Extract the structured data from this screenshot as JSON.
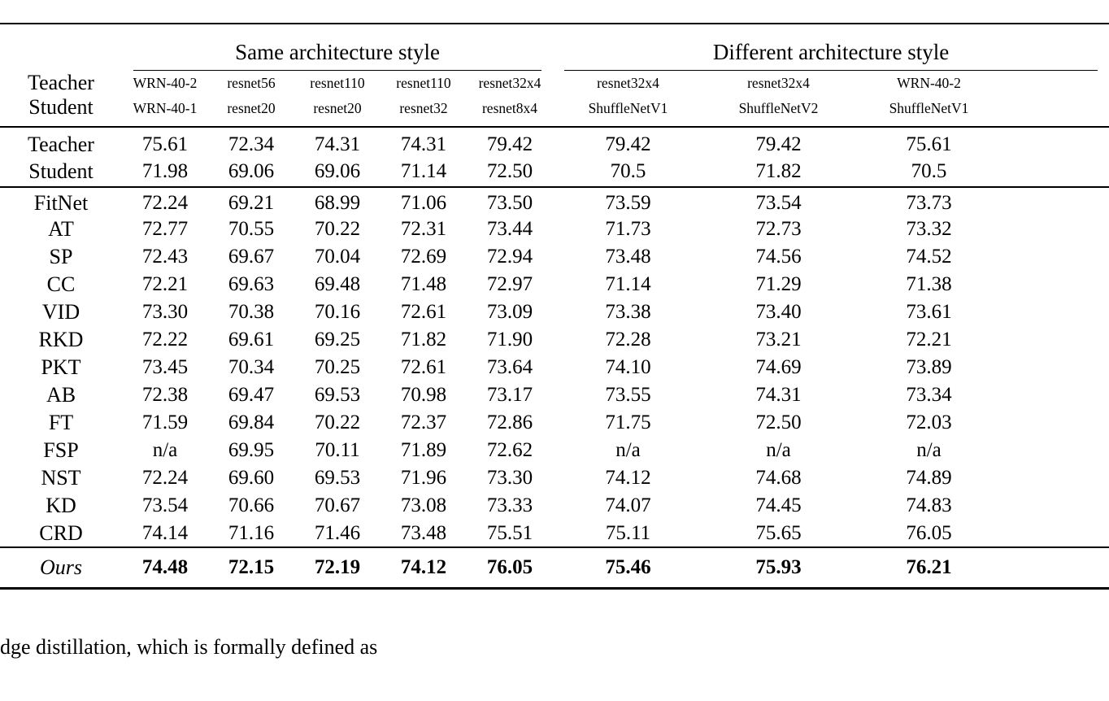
{
  "table": {
    "group_headers": [
      {
        "label": "Same architecture style",
        "span": 5
      },
      {
        "label": "Different architecture style",
        "span": 3
      }
    ],
    "row_label_header": {
      "teacher": "Teacher",
      "student": "Student"
    },
    "columns": [
      {
        "teacher": "WRN-40-2",
        "student": "WRN-40-1"
      },
      {
        "teacher": "resnet56",
        "student": "resnet20"
      },
      {
        "teacher": "resnet110",
        "student": "resnet20"
      },
      {
        "teacher": "resnet110",
        "student": "resnet32"
      },
      {
        "teacher": "resnet32x4",
        "student": "resnet8x4"
      },
      {
        "teacher": "resnet32x4",
        "student": "ShuffleNetV1"
      },
      {
        "teacher": "resnet32x4",
        "student": "ShuffleNetV2"
      },
      {
        "teacher": "WRN-40-2",
        "student": "ShuffleNetV1"
      }
    ],
    "baseline_rows": [
      {
        "label": "Teacher",
        "values": [
          "75.61",
          "72.34",
          "74.31",
          "74.31",
          "79.42",
          "79.42",
          "79.42",
          "75.61"
        ]
      },
      {
        "label": "Student",
        "values": [
          "71.98",
          "69.06",
          "69.06",
          "71.14",
          "72.50",
          "70.5",
          "71.82",
          "70.5"
        ]
      }
    ],
    "method_rows": [
      {
        "label": "FitNet",
        "values": [
          "72.24",
          "69.21",
          "68.99",
          "71.06",
          "73.50",
          "73.59",
          "73.54",
          "73.73"
        ]
      },
      {
        "label": "AT",
        "values": [
          "72.77",
          "70.55",
          "70.22",
          "72.31",
          "73.44",
          "71.73",
          "72.73",
          "73.32"
        ]
      },
      {
        "label": "SP",
        "values": [
          "72.43",
          "69.67",
          "70.04",
          "72.69",
          "72.94",
          "73.48",
          "74.56",
          "74.52"
        ]
      },
      {
        "label": "CC",
        "values": [
          "72.21",
          "69.63",
          "69.48",
          "71.48",
          "72.97",
          "71.14",
          "71.29",
          "71.38"
        ]
      },
      {
        "label": "VID",
        "values": [
          "73.30",
          "70.38",
          "70.16",
          "72.61",
          "73.09",
          "73.38",
          "73.40",
          "73.61"
        ]
      },
      {
        "label": "RKD",
        "values": [
          "72.22",
          "69.61",
          "69.25",
          "71.82",
          "71.90",
          "72.28",
          "73.21",
          "72.21"
        ]
      },
      {
        "label": "PKT",
        "values": [
          "73.45",
          "70.34",
          "70.25",
          "72.61",
          "73.64",
          "74.10",
          "74.69",
          "73.89"
        ]
      },
      {
        "label": "AB",
        "values": [
          "72.38",
          "69.47",
          "69.53",
          "70.98",
          "73.17",
          "73.55",
          "74.31",
          "73.34"
        ]
      },
      {
        "label": "FT",
        "values": [
          "71.59",
          "69.84",
          "70.22",
          "72.37",
          "72.86",
          "71.75",
          "72.50",
          "72.03"
        ]
      },
      {
        "label": "FSP",
        "values": [
          "n/a",
          "69.95",
          "70.11",
          "71.89",
          "72.62",
          "n/a",
          "n/a",
          "n/a"
        ]
      },
      {
        "label": "NST",
        "values": [
          "72.24",
          "69.60",
          "69.53",
          "71.96",
          "73.30",
          "74.12",
          "74.68",
          "74.89"
        ]
      },
      {
        "label": "KD",
        "values": [
          "73.54",
          "70.66",
          "70.67",
          "73.08",
          "73.33",
          "74.07",
          "74.45",
          "74.83"
        ]
      },
      {
        "label": "CRD",
        "values": [
          "74.14",
          "71.16",
          "71.46",
          "73.48",
          "75.51",
          "75.11",
          "75.65",
          "76.05"
        ]
      }
    ],
    "ours_row": {
      "label": "Ours",
      "values": [
        "74.48",
        "72.15",
        "72.19",
        "74.12",
        "76.05",
        "75.46",
        "75.93",
        "76.21"
      ]
    }
  },
  "caption_fragment": "dge distillation, which is formally defined as"
}
